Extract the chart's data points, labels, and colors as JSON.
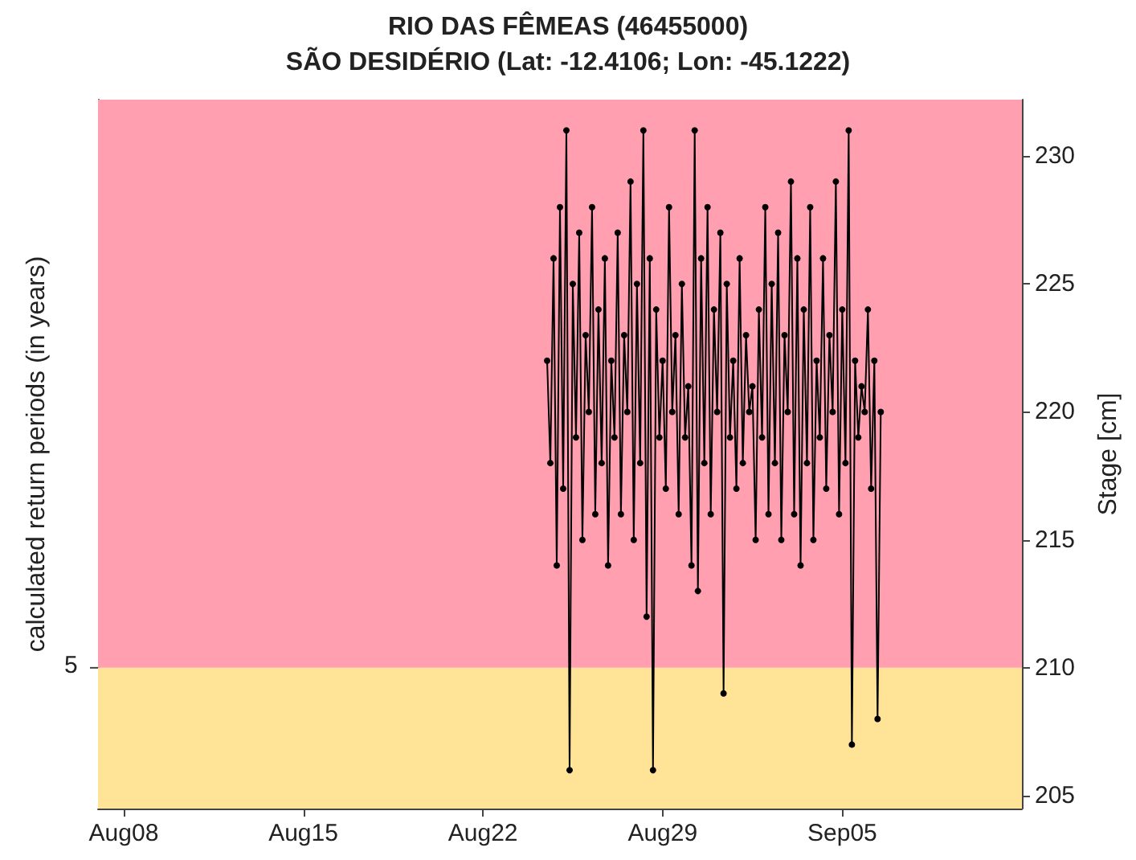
{
  "chart_data": {
    "type": "line",
    "title": "RIO DAS FÊMEAS (46455000)",
    "subtitle": "SÃO DESIDÉRIO (Lat: -12.4106; Lon: -45.1222)",
    "ylabel": "calculated return periods (in years)",
    "y2label": "Stage [cm]",
    "xlim": [
      "--08-07",
      "--09-12"
    ],
    "xticks": [
      {
        "value": "--08-08",
        "label": "Aug08"
      },
      {
        "value": "--08-15",
        "label": "Aug15"
      },
      {
        "value": "--08-22",
        "label": "Aug22"
      },
      {
        "value": "--08-29",
        "label": "Aug29"
      },
      {
        "value": "--09-05",
        "label": "Sep05"
      }
    ],
    "annotations": [
      "5"
    ],
    "y2lim": [
      204.5,
      232.2
    ],
    "y2ticks": [
      205,
      210,
      215,
      220,
      225,
      230
    ],
    "bands": [
      {
        "axis": "y2",
        "from": 204.5,
        "to": 210,
        "color": "#ffe497"
      },
      {
        "axis": "y2",
        "from": 210,
        "to": 232.2,
        "color": "#ff9fb0"
      }
    ],
    "marker": "circle",
    "line_style": "solid",
    "grid": false,
    "x": [
      "--08-24T12:00",
      "--08-24T15:00",
      "--08-24T18:00",
      "--08-24T21:00",
      "--08-25T00:00",
      "--08-25T03:00",
      "--08-25T06:00",
      "--08-25T09:00",
      "--08-25T12:00",
      "--08-25T15:00",
      "--08-25T18:00",
      "--08-25T21:00",
      "--08-26T00:00",
      "--08-26T03:00",
      "--08-26T06:00",
      "--08-26T09:00",
      "--08-26T12:00",
      "--08-26T15:00",
      "--08-26T18:00",
      "--08-26T21:00",
      "--08-27T00:00",
      "--08-27T03:00",
      "--08-27T06:00",
      "--08-27T09:00",
      "--08-27T12:00",
      "--08-27T15:00",
      "--08-27T18:00",
      "--08-27T21:00",
      "--08-28T00:00",
      "--08-28T03:00",
      "--08-28T06:00",
      "--08-28T09:00",
      "--08-28T12:00",
      "--08-28T15:00",
      "--08-28T18:00",
      "--08-28T21:00",
      "--08-29T00:00",
      "--08-29T03:00",
      "--08-29T06:00",
      "--08-29T09:00",
      "--08-29T12:00",
      "--08-29T15:00",
      "--08-29T18:00",
      "--08-29T21:00",
      "--08-30T00:00",
      "--08-30T03:00",
      "--08-30T06:00",
      "--08-30T09:00",
      "--08-30T12:00",
      "--08-30T15:00",
      "--08-30T18:00",
      "--08-30T21:00",
      "--08-31T00:00",
      "--08-31T03:00",
      "--08-31T06:00",
      "--08-31T09:00",
      "--08-31T12:00",
      "--08-31T15:00",
      "--08-31T18:00",
      "--08-31T21:00",
      "--09-01T00:00",
      "--09-01T03:00",
      "--09-01T06:00",
      "--09-01T09:00",
      "--09-01T12:00",
      "--09-01T15:00",
      "--09-01T18:00",
      "--09-01T21:00",
      "--09-02T00:00",
      "--09-02T03:00",
      "--09-02T06:00",
      "--09-02T09:00",
      "--09-02T12:00",
      "--09-02T15:00",
      "--09-02T18:00",
      "--09-02T21:00",
      "--09-03T00:00",
      "--09-03T03:00",
      "--09-03T06:00",
      "--09-03T09:00",
      "--09-03T12:00",
      "--09-03T15:00",
      "--09-03T18:00",
      "--09-03T21:00",
      "--09-04T00:00",
      "--09-04T03:00",
      "--09-04T06:00",
      "--09-04T09:00",
      "--09-04T12:00",
      "--09-04T15:00",
      "--09-04T18:00",
      "--09-04T21:00",
      "--09-05T00:00",
      "--09-05T03:00",
      "--09-05T06:00",
      "--09-05T09:00",
      "--09-05T12:00",
      "--09-05T15:00",
      "--09-05T18:00",
      "--09-05T21:00",
      "--09-06T00:00",
      "--09-06T03:00",
      "--09-06T06:00",
      "--09-06T09:00",
      "--09-06T12:00"
    ],
    "series": [
      {
        "color": "#000000",
        "axis": "y2",
        "values": [
          222,
          218,
          226,
          214,
          228,
          217,
          231,
          206,
          225,
          219,
          227,
          215,
          223,
          220,
          228,
          216,
          224,
          218,
          226,
          214,
          222,
          219,
          227,
          216,
          223,
          220,
          229,
          215,
          225,
          218,
          231,
          212,
          226,
          206,
          224,
          219,
          222,
          217,
          228,
          220,
          223,
          216,
          225,
          219,
          221,
          214,
          231,
          213,
          226,
          218,
          228,
          216,
          224,
          220,
          227,
          209,
          225,
          219,
          222,
          217,
          226,
          218,
          223,
          220,
          221,
          215,
          224,
          219,
          228,
          216,
          225,
          218,
          227,
          215,
          223,
          220,
          229,
          216,
          226,
          214,
          224,
          218,
          228,
          215,
          222,
          219,
          226,
          217,
          223,
          220,
          229,
          216,
          224,
          218,
          231,
          207,
          222,
          219,
          221,
          220,
          224,
          217,
          222,
          208,
          220
        ]
      }
    ]
  }
}
